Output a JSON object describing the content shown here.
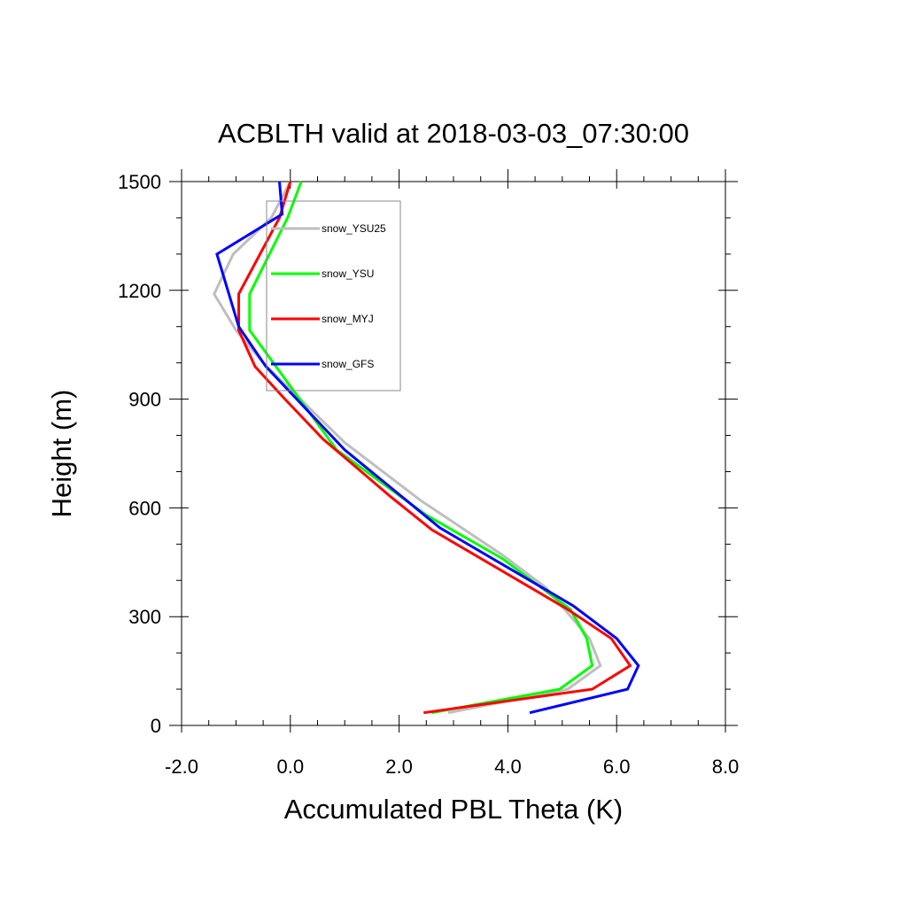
{
  "chart_data": {
    "type": "line",
    "title": "ACBLTH valid at 2018-03-03_07:30:00",
    "xlabel": "Accumulated PBL Theta (K)",
    "ylabel": "Height (m)",
    "xlim": [
      -2.0,
      8.0
    ],
    "ylim": [
      0,
      1500
    ],
    "xticks": [
      -2.0,
      0.0,
      2.0,
      4.0,
      6.0,
      8.0
    ],
    "xtick_labels": [
      "-2.0",
      "0.0",
      "2.0",
      "4.0",
      "6.0",
      "8.0"
    ],
    "yticks": [
      0,
      300,
      600,
      900,
      1200,
      1500
    ],
    "ytick_labels": [
      "0",
      "300",
      "600",
      "900",
      "1200",
      "1500"
    ],
    "grid": false,
    "legend_position": "top-left",
    "series": [
      {
        "name": "snow_YSU25",
        "color": "#bebebe",
        "points": [
          [
            2.9,
            35
          ],
          [
            5.1,
            100
          ],
          [
            5.7,
            165
          ],
          [
            5.5,
            240
          ],
          [
            4.7,
            380
          ],
          [
            3.9,
            470
          ],
          [
            2.4,
            620
          ],
          [
            1.0,
            780
          ],
          [
            -0.5,
            1000
          ],
          [
            -1.0,
            1090
          ],
          [
            -1.4,
            1190
          ],
          [
            -1.05,
            1300
          ],
          [
            -0.35,
            1400
          ],
          [
            0.0,
            1500
          ]
        ]
      },
      {
        "name": "snow_YSU",
        "color": "#00ff00",
        "points": [
          [
            2.6,
            35
          ],
          [
            4.95,
            100
          ],
          [
            5.55,
            165
          ],
          [
            5.45,
            240
          ],
          [
            5.15,
            320
          ],
          [
            3.9,
            460
          ],
          [
            2.5,
            580
          ],
          [
            0.85,
            760
          ],
          [
            -0.75,
            1090
          ],
          [
            -0.75,
            1190
          ],
          [
            -0.05,
            1400
          ],
          [
            0.2,
            1500
          ]
        ]
      },
      {
        "name": "snow_MYJ",
        "color": "#ff0000",
        "points": [
          [
            2.45,
            35
          ],
          [
            5.55,
            100
          ],
          [
            6.25,
            165
          ],
          [
            5.9,
            240
          ],
          [
            5.1,
            320
          ],
          [
            2.6,
            540
          ],
          [
            1.85,
            630
          ],
          [
            0.6,
            790
          ],
          [
            -0.1,
            900
          ],
          [
            -0.65,
            990
          ],
          [
            -0.95,
            1090
          ],
          [
            -0.95,
            1190
          ],
          [
            -0.2,
            1400
          ],
          [
            0.0,
            1500
          ]
        ]
      },
      {
        "name": "snow_GFS",
        "color": "#0000ff",
        "points": [
          [
            4.4,
            35
          ],
          [
            6.2,
            100
          ],
          [
            6.4,
            165
          ],
          [
            6.0,
            240
          ],
          [
            5.2,
            330
          ],
          [
            2.75,
            545
          ],
          [
            1.0,
            760
          ],
          [
            -0.45,
            990
          ],
          [
            -0.95,
            1100
          ],
          [
            -1.15,
            1200
          ],
          [
            -1.35,
            1300
          ],
          [
            -0.15,
            1410
          ],
          [
            -0.2,
            1500
          ]
        ]
      }
    ]
  }
}
